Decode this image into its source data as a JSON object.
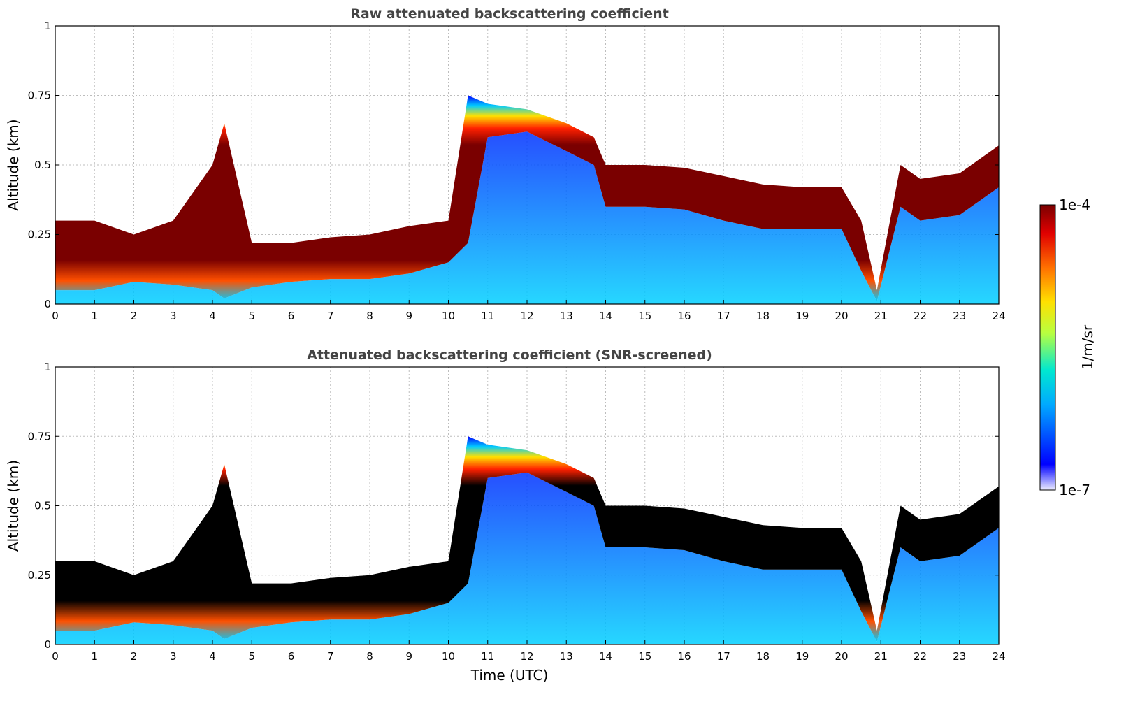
{
  "chart_data": [
    {
      "type": "heatmap",
      "title": "Raw attenuated backscattering coefficient",
      "ylabel": "Altitude (km)",
      "xlabel": "",
      "xlim": [
        0,
        24
      ],
      "ylim": [
        0,
        1
      ],
      "xticks": [
        "0",
        "1",
        "2",
        "3",
        "4",
        "5",
        "6",
        "7",
        "8",
        "9",
        "10",
        "11",
        "12",
        "13",
        "14",
        "15",
        "16",
        "17",
        "18",
        "19",
        "20",
        "21",
        "22",
        "23",
        "24"
      ],
      "yticks": [
        "0",
        "0.25",
        "0.5",
        "0.75",
        "1"
      ],
      "grid": true,
      "cloud_layer_top_km": {
        "t": [
          0,
          1,
          2,
          3,
          4,
          4.3,
          5,
          6,
          7,
          8,
          9,
          10,
          10.5,
          11,
          12,
          13,
          13.7,
          14,
          15,
          16,
          17,
          18,
          19,
          20,
          20.5,
          20.9,
          21.5,
          22,
          23,
          24
        ],
        "top": [
          0.3,
          0.3,
          0.25,
          0.3,
          0.5,
          0.65,
          0.22,
          0.22,
          0.24,
          0.25,
          0.28,
          0.3,
          0.75,
          0.72,
          0.7,
          0.65,
          0.6,
          0.5,
          0.5,
          0.49,
          0.46,
          0.43,
          0.42,
          0.42,
          0.3,
          0.05,
          0.5,
          0.45,
          0.47,
          0.57
        ],
        "bottom": [
          0.05,
          0.05,
          0.08,
          0.07,
          0.05,
          0.02,
          0.06,
          0.08,
          0.09,
          0.09,
          0.11,
          0.15,
          0.22,
          0.6,
          0.62,
          0.55,
          0.5,
          0.35,
          0.35,
          0.34,
          0.3,
          0.27,
          0.27,
          0.27,
          0.12,
          0.01,
          0.35,
          0.3,
          0.32,
          0.42
        ]
      }
    },
    {
      "type": "heatmap",
      "title": "Attenuated backscattering coefficient (SNR-screened)",
      "ylabel": "Altitude (km)",
      "xlabel": "Time (UTC)",
      "xlim": [
        0,
        24
      ],
      "ylim": [
        0,
        1
      ],
      "xticks": [
        "0",
        "1",
        "2",
        "3",
        "4",
        "5",
        "6",
        "7",
        "8",
        "9",
        "10",
        "11",
        "12",
        "13",
        "14",
        "15",
        "16",
        "17",
        "18",
        "19",
        "20",
        "21",
        "22",
        "23",
        "24"
      ],
      "yticks": [
        "0",
        "0.25",
        "0.5",
        "0.75",
        "1"
      ],
      "grid": true,
      "saturated_color": "#000000"
    }
  ],
  "colorbar": {
    "label": "1/m/sr",
    "max_label": "1e-4",
    "min_label": "1e-7",
    "colors": [
      "#eeeeff",
      "#0000ff",
      "#00aaff",
      "#00e8d0",
      "#b8ff40",
      "#ffe000",
      "#ff7000",
      "#e00000",
      "#7a0000"
    ]
  }
}
